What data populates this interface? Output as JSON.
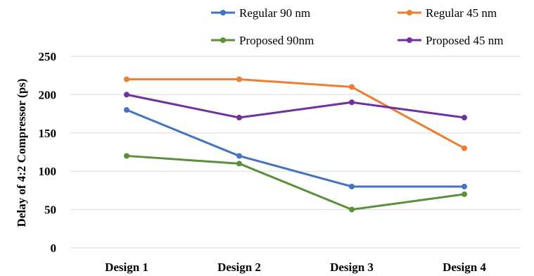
{
  "chart_data": {
    "type": "line",
    "title": "",
    "xlabel": "",
    "ylabel": "Delay of 4:2 Compressor (ps)",
    "categories": [
      "Design 1",
      "Design 2",
      "Design 3",
      "Design 4"
    ],
    "ylim": [
      0,
      250
    ],
    "yticks": [
      0,
      50,
      100,
      150,
      200,
      250
    ],
    "grid": true,
    "legend_position": "top",
    "series": [
      {
        "name": "Regular 90 nm",
        "color": "#4472c4",
        "values": [
          180,
          120,
          80,
          80
        ]
      },
      {
        "name": "Regular 45 nm",
        "color": "#ed7d31",
        "values": [
          220,
          220,
          210,
          130
        ]
      },
      {
        "name": "Proposed 90nm",
        "color": "#5b8f3a",
        "values": [
          120,
          110,
          50,
          70
        ]
      },
      {
        "name": "Proposed 45 nm",
        "color": "#7030a0",
        "values": [
          200,
          170,
          190,
          170
        ]
      }
    ]
  }
}
